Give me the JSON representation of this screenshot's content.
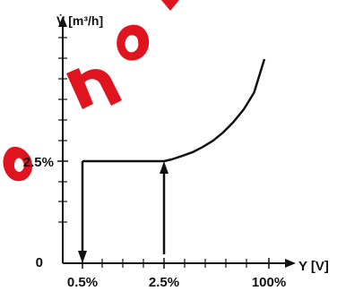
{
  "colors": {
    "axis": "#111111",
    "curve": "#111111",
    "watermark": "#e0141e"
  },
  "watermark": {
    "text": "no",
    "note": "red watermark lettering reproduced as a picture"
  },
  "chart_data": {
    "type": "line",
    "ylabel": "V̇ [m³/h]",
    "xlabel": "Y [V]",
    "x_tick_labels": [
      "0.5%",
      "2.5%",
      "100%"
    ],
    "y_tick_labels": [
      "0",
      "2.5%"
    ],
    "origin_label": "0",
    "xlim": [
      0,
      100
    ],
    "ylim": [
      0,
      100
    ],
    "series": [
      {
        "x": [
          0.5,
          2.5,
          10,
          20,
          30,
          40,
          50,
          60,
          70,
          80,
          90,
          100
        ],
        "y": [
          2.5,
          2.5,
          4.2,
          7.5,
          11,
          16,
          22,
          30,
          40,
          52,
          68,
          100
        ]
      }
    ],
    "annotations": [
      {
        "type": "arrow-down",
        "x": 0.5,
        "from_y": 2.5,
        "to_y": 0
      },
      {
        "type": "arrow-up",
        "x": 2.5,
        "from_y": 0,
        "to_y": 2.5
      }
    ],
    "grid": false,
    "legend": "none"
  }
}
